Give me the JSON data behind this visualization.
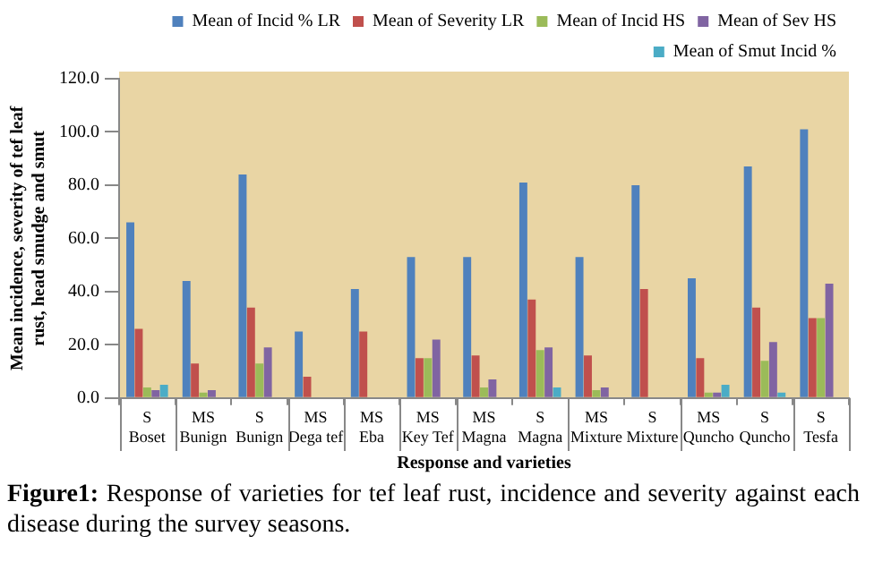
{
  "chart_data": {
    "type": "bar",
    "categories": [
      "S\nBoset",
      "MS\nBunign",
      "S\nBunign",
      "MS\nDega tef",
      "MS\nEba",
      "MS\nKey Tef",
      "MS\nMagna",
      "S\nMagna",
      "MS\nMixture",
      "S\nMixture",
      "MS\nQuncho",
      "S\nQuncho",
      "S\nTesfa"
    ],
    "series": [
      {
        "name": "Mean of Incid % LR",
        "color": "#4f81bd",
        "values": [
          66,
          44,
          84,
          25,
          41,
          53,
          53,
          81,
          53,
          80,
          45,
          87,
          101
        ]
      },
      {
        "name": "Mean of Severity LR",
        "color": "#c0504d",
        "values": [
          26,
          13,
          34,
          8,
          25,
          15,
          16,
          37,
          16,
          41,
          15,
          34,
          30
        ]
      },
      {
        "name": "Mean of Incid HS",
        "color": "#9bbb59",
        "values": [
          4,
          2,
          13,
          null,
          null,
          15,
          4,
          18,
          3,
          null,
          2,
          14,
          30
        ]
      },
      {
        "name": "Mean of Sev HS",
        "color": "#8064a2",
        "values": [
          3,
          3,
          19,
          null,
          null,
          22,
          7,
          19,
          4,
          null,
          2,
          21,
          43
        ]
      },
      {
        "name": "Mean of Smut Incid %",
        "color": "#4bacc6",
        "values": [
          5,
          null,
          null,
          null,
          null,
          null,
          null,
          4,
          null,
          null,
          5,
          2,
          null
        ]
      }
    ],
    "ylim": [
      0,
      120
    ],
    "yticks": [
      {
        "value": 0,
        "label": "0.0"
      },
      {
        "value": 20,
        "label": "20.0"
      },
      {
        "value": 40,
        "label": "40.0"
      },
      {
        "value": 60,
        "label": "60.0"
      },
      {
        "value": 80,
        "label": "80.0"
      },
      {
        "value": 100,
        "label": "100.0"
      },
      {
        "value": 120,
        "label": "120.0"
      }
    ],
    "annotations": [
      "Figure1: Response of varieties for tef leaf rust, incidence and severity against each disease during the survey seasons."
    ],
    "xlabel": "Response and varieties",
    "ylabel": "Mean incidence, severity of tef leaf rust, head smudge and smut",
    "legend": "top",
    "grid": false
  }
}
